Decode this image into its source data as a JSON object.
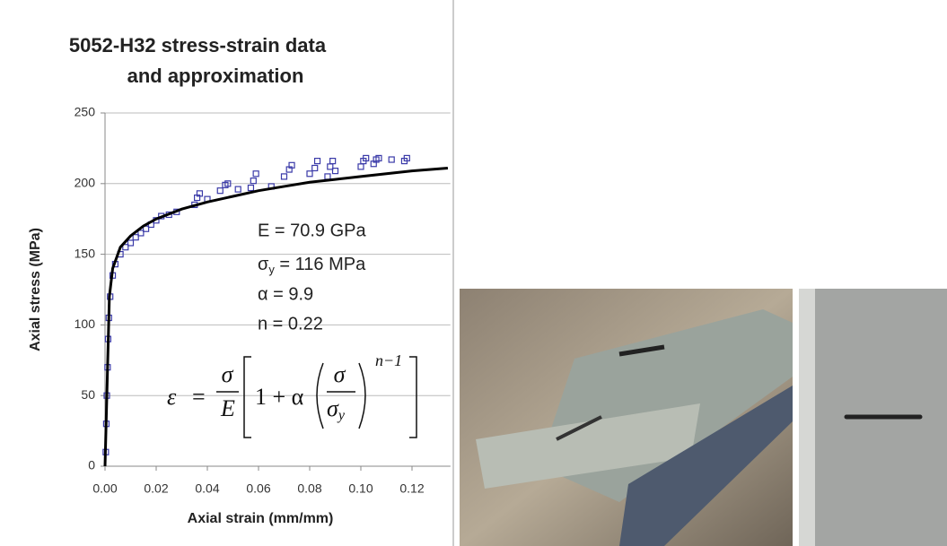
{
  "chart_data": {
    "type": "scatter",
    "title": [
      "5052-H32 stress-strain data",
      "and approximation"
    ],
    "xlabel": "Axial strain (mm/mm)",
    "ylabel": "Axial stress (MPa)",
    "xlim": [
      0,
      0.135
    ],
    "ylim": [
      0,
      250
    ],
    "xticks": [
      {
        "value": 0,
        "label": "0.00"
      },
      {
        "value": 0.02,
        "label": "0.02"
      },
      {
        "value": 0.04,
        "label": "0.04"
      },
      {
        "value": 0.06,
        "label": "0.06"
      },
      {
        "value": 0.08,
        "label": "0.08"
      },
      {
        "value": 0.1,
        "label": "0.10"
      },
      {
        "value": 0.12,
        "label": "0.12"
      }
    ],
    "yticks": [
      0,
      50,
      100,
      150,
      200,
      250
    ],
    "grid": true,
    "series": [
      {
        "type": "scatter",
        "marker": "square",
        "color": "#3a3aa8",
        "x": [
          0.0003,
          0.0005,
          0.0007,
          0.001,
          0.0012,
          0.0015,
          0.002,
          0.003,
          0.004,
          0.006,
          0.008,
          0.01,
          0.012,
          0.014,
          0.016,
          0.018,
          0.02,
          0.022,
          0.025,
          0.028,
          0.035,
          0.036,
          0.037,
          0.04,
          0.045,
          0.047,
          0.048,
          0.052,
          0.057,
          0.058,
          0.059,
          0.065,
          0.07,
          0.072,
          0.073,
          0.08,
          0.082,
          0.083,
          0.087,
          0.088,
          0.089,
          0.09,
          0.1,
          0.101,
          0.102,
          0.105,
          0.106,
          0.107,
          0.112,
          0.117,
          0.118
        ],
        "values": [
          10,
          30,
          50,
          70,
          90,
          105,
          120,
          135,
          143,
          150,
          155,
          158,
          162,
          165,
          168,
          171,
          174,
          177,
          178,
          180,
          185,
          190,
          193,
          189,
          195,
          199,
          200,
          196,
          197,
          202,
          207,
          198,
          205,
          210,
          213,
          207,
          211,
          216,
          205,
          212,
          216,
          209,
          212,
          216,
          218,
          214,
          217,
          218,
          217,
          216,
          218
        ]
      },
      {
        "type": "line",
        "color": "#000000",
        "x": [
          0,
          0.0017,
          0.003,
          0.006,
          0.01,
          0.015,
          0.02,
          0.03,
          0.04,
          0.05,
          0.06,
          0.07,
          0.08,
          0.09,
          0.1,
          0.11,
          0.12,
          0.134
        ],
        "values": [
          0,
          120,
          140,
          155,
          163,
          170,
          175,
          182,
          187,
          191,
          195,
          198,
          201,
          203,
          205,
          207,
          209,
          211
        ]
      }
    ],
    "annotations": [
      "E = 70.9 GPa",
      "α = 9.9",
      "n = 0.22"
    ],
    "yield_label": {
      "symbol": "σ",
      "sub": "y",
      "rest": " = 116 MPa"
    },
    "equation": {
      "lhs": "ε",
      "eq": "=",
      "num": "σ",
      "den": "E",
      "one": "1 + α",
      "inner_num": "σ",
      "inner_den": "σ",
      "inner_sub": "y",
      "exp": "n−1"
    }
  }
}
